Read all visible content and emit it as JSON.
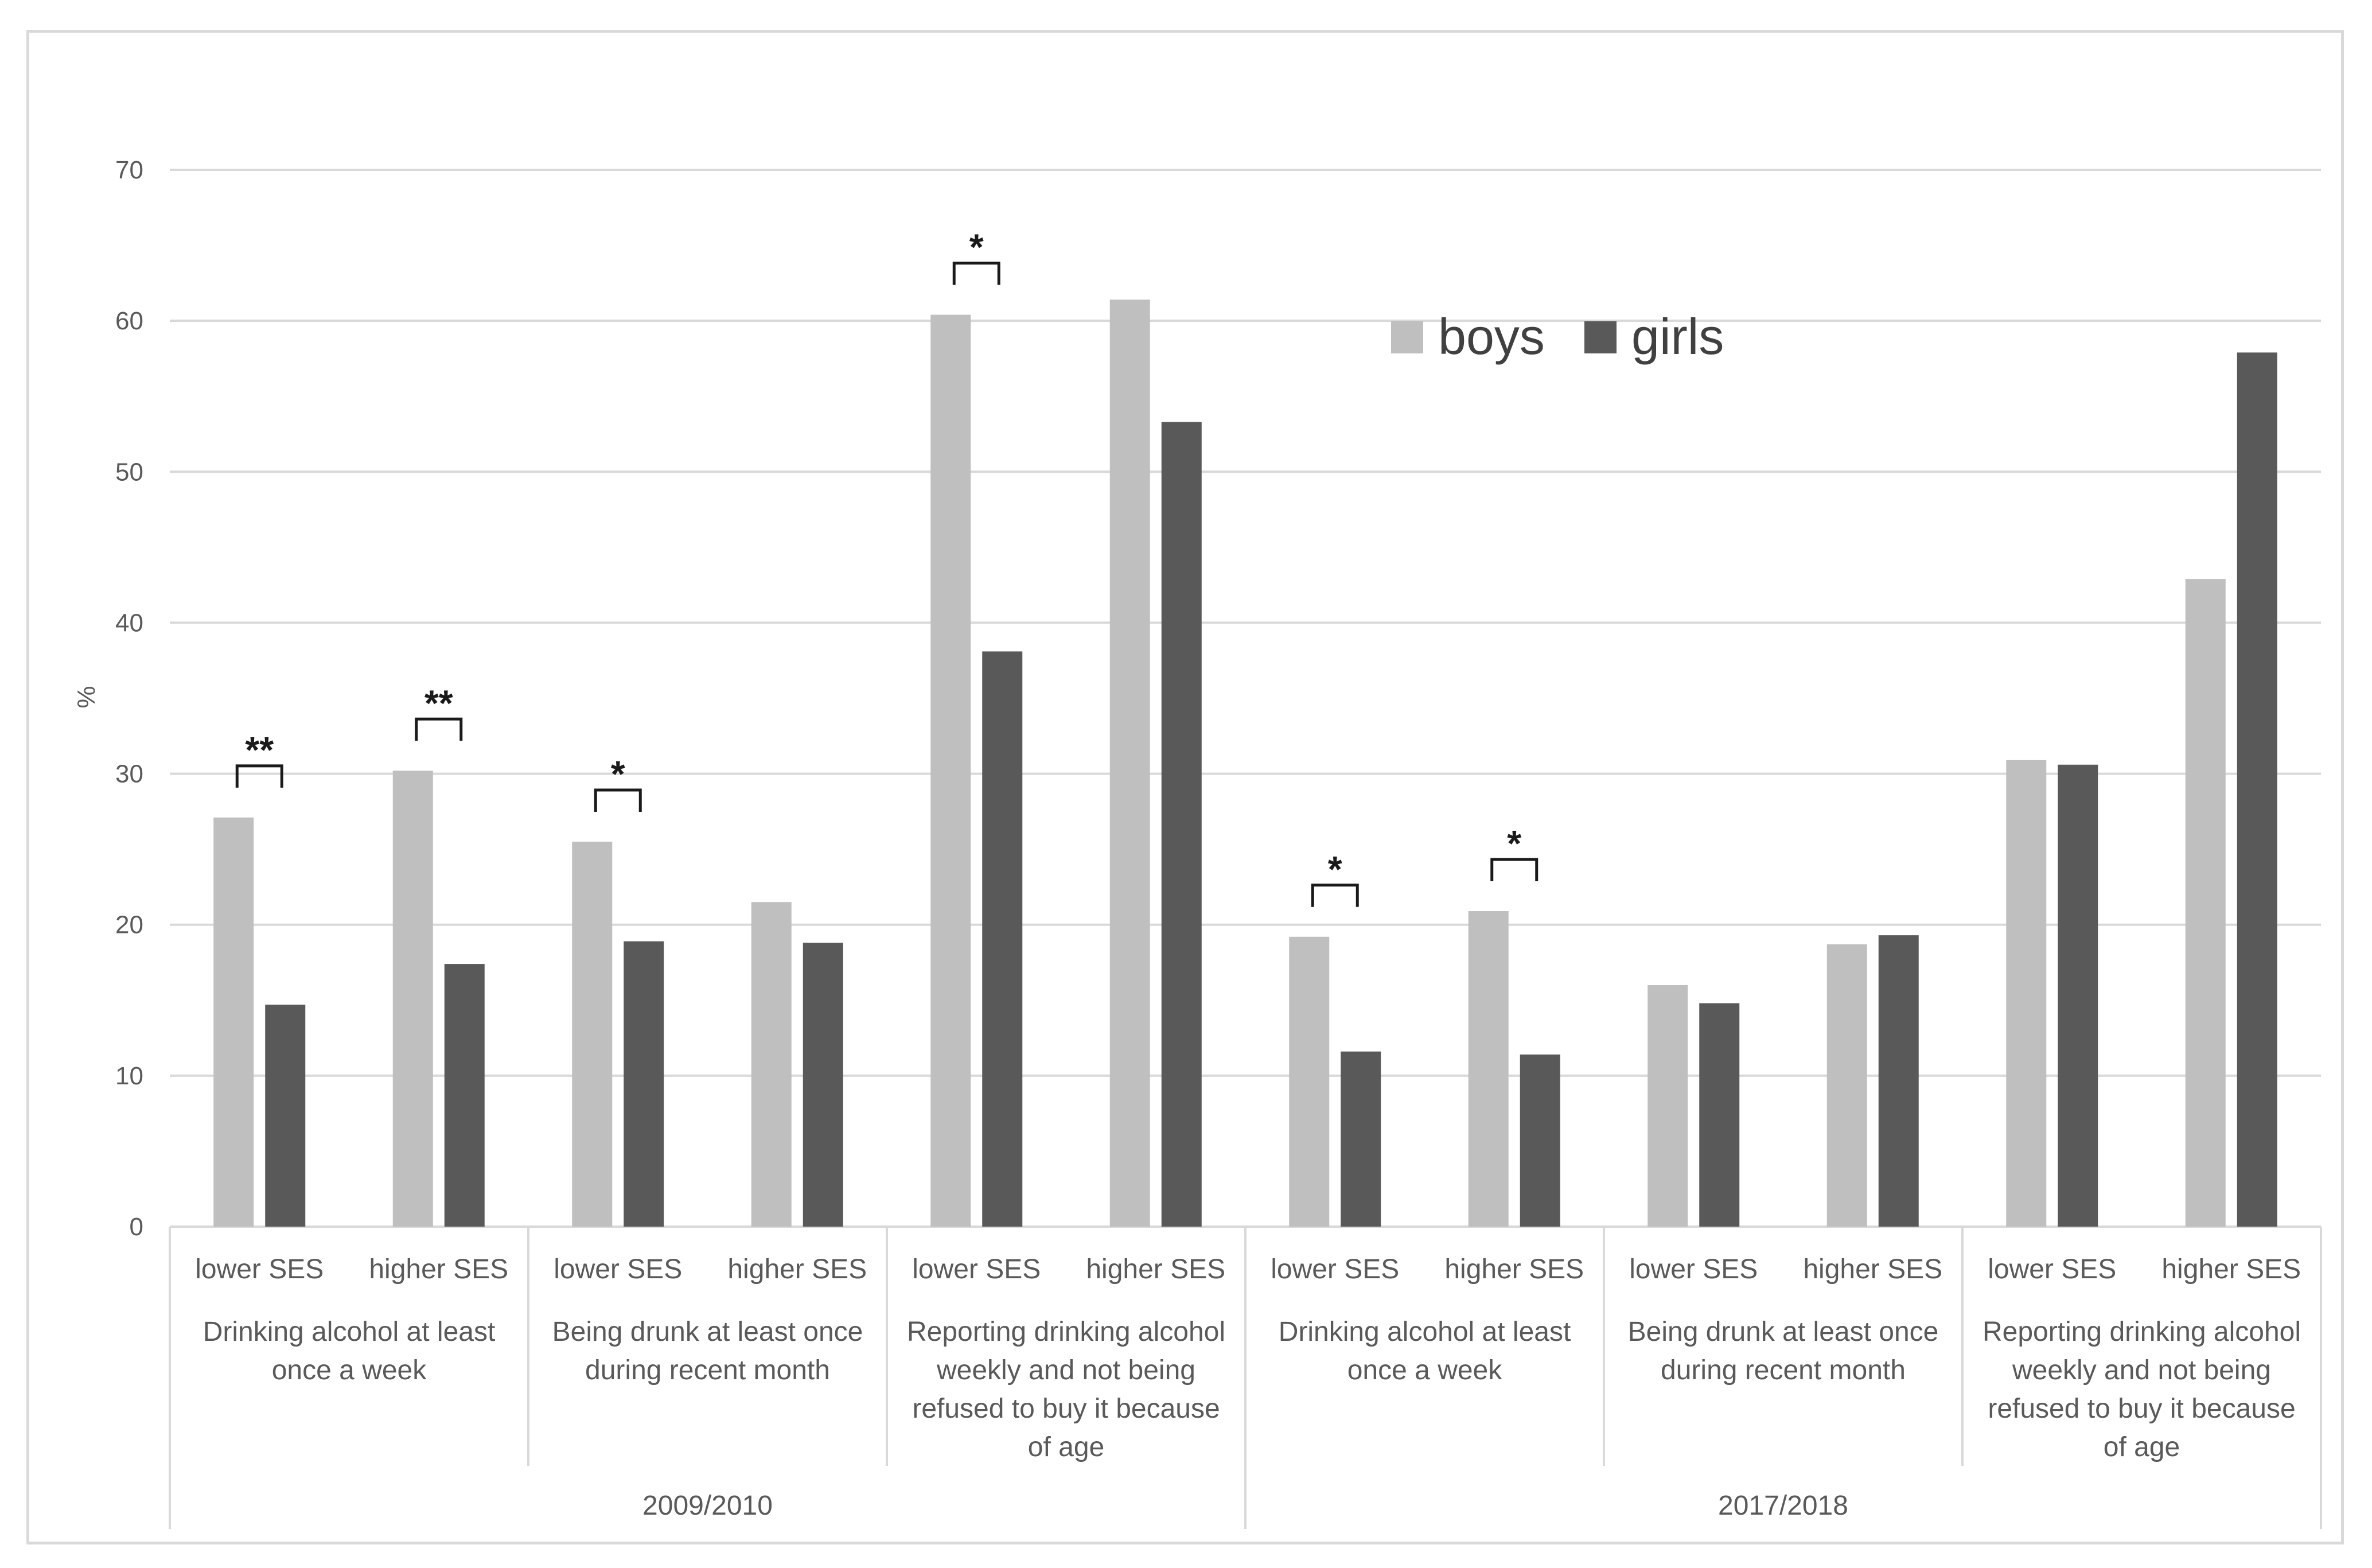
{
  "chart_data": {
    "type": "bar",
    "ylabel": "%",
    "ylim": [
      0,
      70
    ],
    "yticks": [
      0,
      10,
      20,
      30,
      40,
      50,
      60,
      70
    ],
    "grid": true,
    "legend": {
      "position": "top-center",
      "entries": [
        "boys",
        "girls"
      ]
    },
    "colors": {
      "boys": "#bfbfbf",
      "girls": "#595959"
    },
    "series_names": [
      "boys",
      "girls"
    ],
    "years": [
      {
        "label": "2009/2010",
        "groups": [
          {
            "label": [
              "Drinking alcohol at least",
              "once a week"
            ],
            "subgroups": [
              {
                "label": "lower SES",
                "boys": 27.1,
                "girls": 14.7,
                "sig": "**"
              },
              {
                "label": "higher SES",
                "boys": 30.2,
                "girls": 17.4,
                "sig": "**"
              }
            ]
          },
          {
            "label": [
              "Being drunk at least once",
              "during recent month"
            ],
            "subgroups": [
              {
                "label": "lower SES",
                "boys": 25.5,
                "girls": 18.9,
                "sig": "*"
              },
              {
                "label": "higher SES",
                "boys": 21.5,
                "girls": 18.8,
                "sig": ""
              }
            ]
          },
          {
            "label": [
              "Reporting drinking alcohol",
              "weekly and not being",
              "refused to buy it because",
              "of age"
            ],
            "subgroups": [
              {
                "label": "lower SES",
                "boys": 60.4,
                "girls": 38.1,
                "sig": "*"
              },
              {
                "label": "higher SES",
                "boys": 61.4,
                "girls": 53.3,
                "sig": ""
              }
            ]
          }
        ]
      },
      {
        "label": "2017/2018",
        "groups": [
          {
            "label": [
              "Drinking alcohol at least",
              "once a week"
            ],
            "subgroups": [
              {
                "label": "lower SES",
                "boys": 19.2,
                "girls": 11.6,
                "sig": "*"
              },
              {
                "label": "higher SES",
                "boys": 20.9,
                "girls": 11.4,
                "sig": "*"
              }
            ]
          },
          {
            "label": [
              "Being drunk at least once",
              "during recent month"
            ],
            "subgroups": [
              {
                "label": "lower SES",
                "boys": 16.0,
                "girls": 14.8,
                "sig": ""
              },
              {
                "label": "higher SES",
                "boys": 18.7,
                "girls": 19.3,
                "sig": ""
              }
            ]
          },
          {
            "label": [
              "Reporting drinking alcohol",
              "weekly and not being",
              "refused to buy it because",
              "of age"
            ],
            "subgroups": [
              {
                "label": "lower SES",
                "boys": 30.9,
                "girls": 30.6,
                "sig": ""
              },
              {
                "label": "higher SES",
                "boys": 42.9,
                "girls": 57.9,
                "sig": ""
              }
            ]
          }
        ]
      }
    ]
  }
}
